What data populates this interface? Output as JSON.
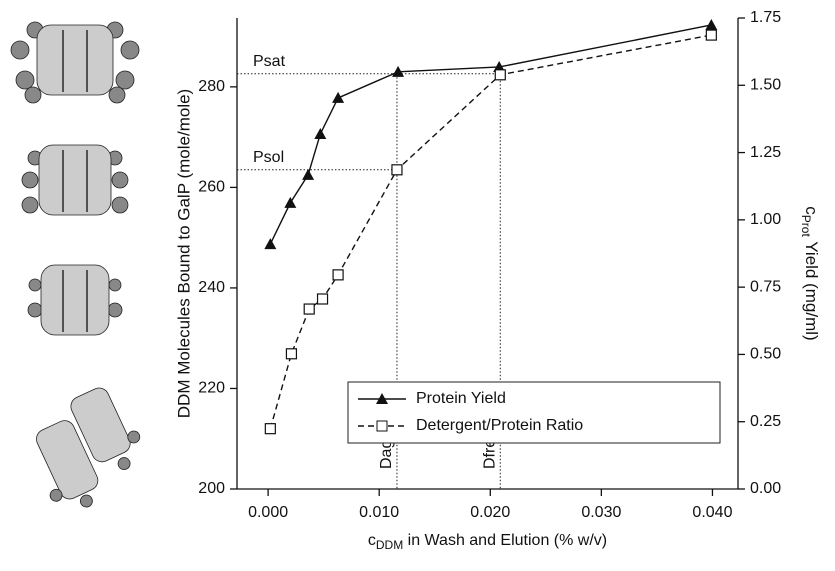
{
  "chart_data": {
    "type": "line",
    "xlabel": {
      "main": "c",
      "sub": "DDM",
      "rest": " in Wash and Elution (% w/v)"
    },
    "ylabel": "DDM Molecules Bound to GalP (mole/mole)",
    "y2label": {
      "main": "c",
      "sub": "Prot",
      "rest": " Yield (mg/ml)"
    },
    "xlim": [
      -0.0028,
      0.0423
    ],
    "ylim": [
      200,
      293.7
    ],
    "y2lim": [
      0,
      1.75
    ],
    "xticks": [
      {
        "value": 0,
        "label": "0.000"
      },
      {
        "value": 0.01,
        "label": "0.010"
      },
      {
        "value": 0.02,
        "label": "0.020"
      },
      {
        "value": 0.03,
        "label": "0.030"
      },
      {
        "value": 0.04,
        "label": "0.040"
      }
    ],
    "yticks": [
      200,
      220,
      240,
      260,
      280
    ],
    "y2ticks": [
      {
        "value": 0,
        "label": "0.00"
      },
      {
        "value": 0.25,
        "label": "0.25"
      },
      {
        "value": 0.5,
        "label": "0.50"
      },
      {
        "value": 0.75,
        "label": "0.75"
      },
      {
        "value": 1,
        "label": "1.00"
      },
      {
        "value": 1.25,
        "label": "1.25"
      },
      {
        "value": 1.5,
        "label": "1.50"
      },
      {
        "value": 1.75,
        "label": "1.75"
      }
    ],
    "series": [
      {
        "name": "Protein Yield",
        "color": "#111111",
        "marker": "triangle",
        "dash": false,
        "axis": "y2",
        "x": [
          0.0002,
          0.002,
          0.0036,
          0.0047,
          0.0063,
          0.0117,
          0.0208,
          0.0399
        ],
        "values": [
          0.91,
          1.063,
          1.167,
          1.319,
          1.453,
          1.55,
          1.568,
          1.724
        ]
      },
      {
        "name": "Detergent/Protein Ratio",
        "color": "#111111",
        "marker": "square",
        "dash": true,
        "axis": "y",
        "x": [
          0.0002,
          0.0021,
          0.0037,
          0.0049,
          0.0063,
          0.0116,
          0.0209,
          0.0399
        ],
        "values": [
          212,
          226.9,
          235.8,
          237.8,
          242.6,
          263.5,
          282.4,
          290.3
        ]
      }
    ],
    "annotations": [
      {
        "label": "Psat",
        "orient": "h",
        "x": 0.0209,
        "y": 282.6
      },
      {
        "label": "Psol",
        "orient": "h",
        "x": 0.0116,
        "y": 263.5
      },
      {
        "label": "Dagg",
        "orient": "v",
        "x": 0.0116,
        "y": 282.6
      },
      {
        "label": "Dfree",
        "orient": "v",
        "x": 0.0209,
        "y": 284.0
      }
    ],
    "legend": "lower right"
  }
}
